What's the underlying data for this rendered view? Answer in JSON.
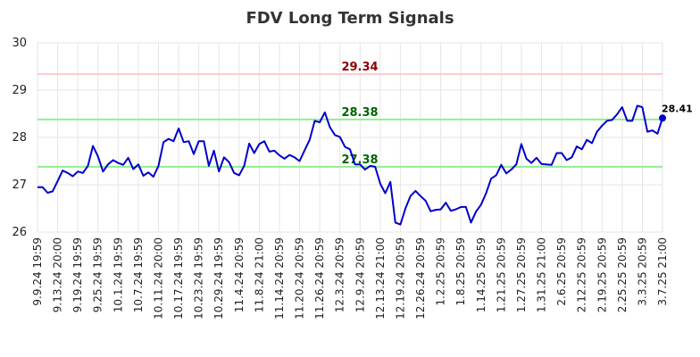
{
  "chart_data": {
    "type": "line",
    "title": "FDV Long Term Signals",
    "xlabel": "",
    "ylabel": "",
    "ylim": [
      26,
      30
    ],
    "yticks": [
      26,
      27,
      28,
      29,
      30
    ],
    "grid": true,
    "colors": {
      "line": "#0000cc",
      "upper_line": "#ffcccc",
      "signal_lines": "#90ee90",
      "upper_label": "#8b0000",
      "signal_label": "#006400",
      "grid": "#e6e6e6"
    },
    "x_tick_labels": [
      "9.9.24 19:59",
      "9.13.24 20:00",
      "9.19.24 19:59",
      "9.25.24 19:59",
      "10.1.24 19:59",
      "10.7.24 19:59",
      "10.11.24 20:00",
      "10.17.24 19:59",
      "10.23.24 19:59",
      "10.29.24 19:59",
      "11.4.24 20:59",
      "11.8.24 21:00",
      "11.14.24 20:59",
      "11.20.24 20:59",
      "11.26.24 20:59",
      "12.3.24 20:59",
      "12.9.24 20:59",
      "12.13.24 21:00",
      "12.19.24 20:59",
      "12.26.24 20:59",
      "1.2.25 20:59",
      "1.8.25 20:59",
      "1.14.25 20:59",
      "1.21.25 20:59",
      "1.27.25 20:59",
      "1.31.25 21:00",
      "2.6.25 20:59",
      "2.12.25 20:59",
      "2.19.25 20:59",
      "2.25.25 20:59",
      "3.3.25 20:59",
      "3.7.25 21:00"
    ],
    "hlines": [
      {
        "value": 29.34,
        "label": "29.34",
        "kind": "upper"
      },
      {
        "value": 28.38,
        "label": "28.38",
        "kind": "signal"
      },
      {
        "value": 27.38,
        "label": "27.38",
        "kind": "signal"
      }
    ],
    "last_point_label": "28.41",
    "series": [
      {
        "values": [
          26.95,
          26.95,
          26.83,
          26.86,
          27.08,
          27.3,
          27.25,
          27.18,
          27.28,
          27.25,
          27.4,
          27.82,
          27.6,
          27.28,
          27.43,
          27.52,
          27.46,
          27.42,
          27.57,
          27.33,
          27.43,
          27.19,
          27.26,
          27.17,
          27.4,
          27.9,
          27.97,
          27.92,
          28.19,
          27.9,
          27.92,
          27.65,
          27.92,
          27.92,
          27.4,
          27.72,
          27.28,
          27.58,
          27.48,
          27.25,
          27.2,
          27.4,
          27.87,
          27.67,
          27.86,
          27.92,
          27.7,
          27.72,
          27.62,
          27.55,
          27.63,
          27.58,
          27.5,
          27.73,
          27.95,
          28.35,
          28.32,
          28.53,
          28.22,
          28.05,
          28.01,
          27.8,
          27.75,
          27.43,
          27.43,
          27.32,
          27.4,
          27.38,
          27.02,
          26.82,
          27.06,
          26.2,
          26.16,
          26.5,
          26.76,
          26.87,
          26.76,
          26.66,
          26.44,
          26.47,
          26.48,
          26.62,
          26.45,
          26.48,
          26.53,
          26.53,
          26.2,
          26.43,
          26.58,
          26.82,
          27.13,
          27.2,
          27.42,
          27.24,
          27.32,
          27.43,
          27.86,
          27.55,
          27.46,
          27.57,
          27.44,
          27.43,
          27.42,
          27.67,
          27.67,
          27.52,
          27.58,
          27.81,
          27.75,
          27.95,
          27.88,
          28.12,
          28.25,
          28.35,
          28.37,
          28.49,
          28.64,
          28.35,
          28.35,
          28.67,
          28.64,
          28.12,
          28.15,
          28.08,
          28.41
        ]
      }
    ]
  }
}
